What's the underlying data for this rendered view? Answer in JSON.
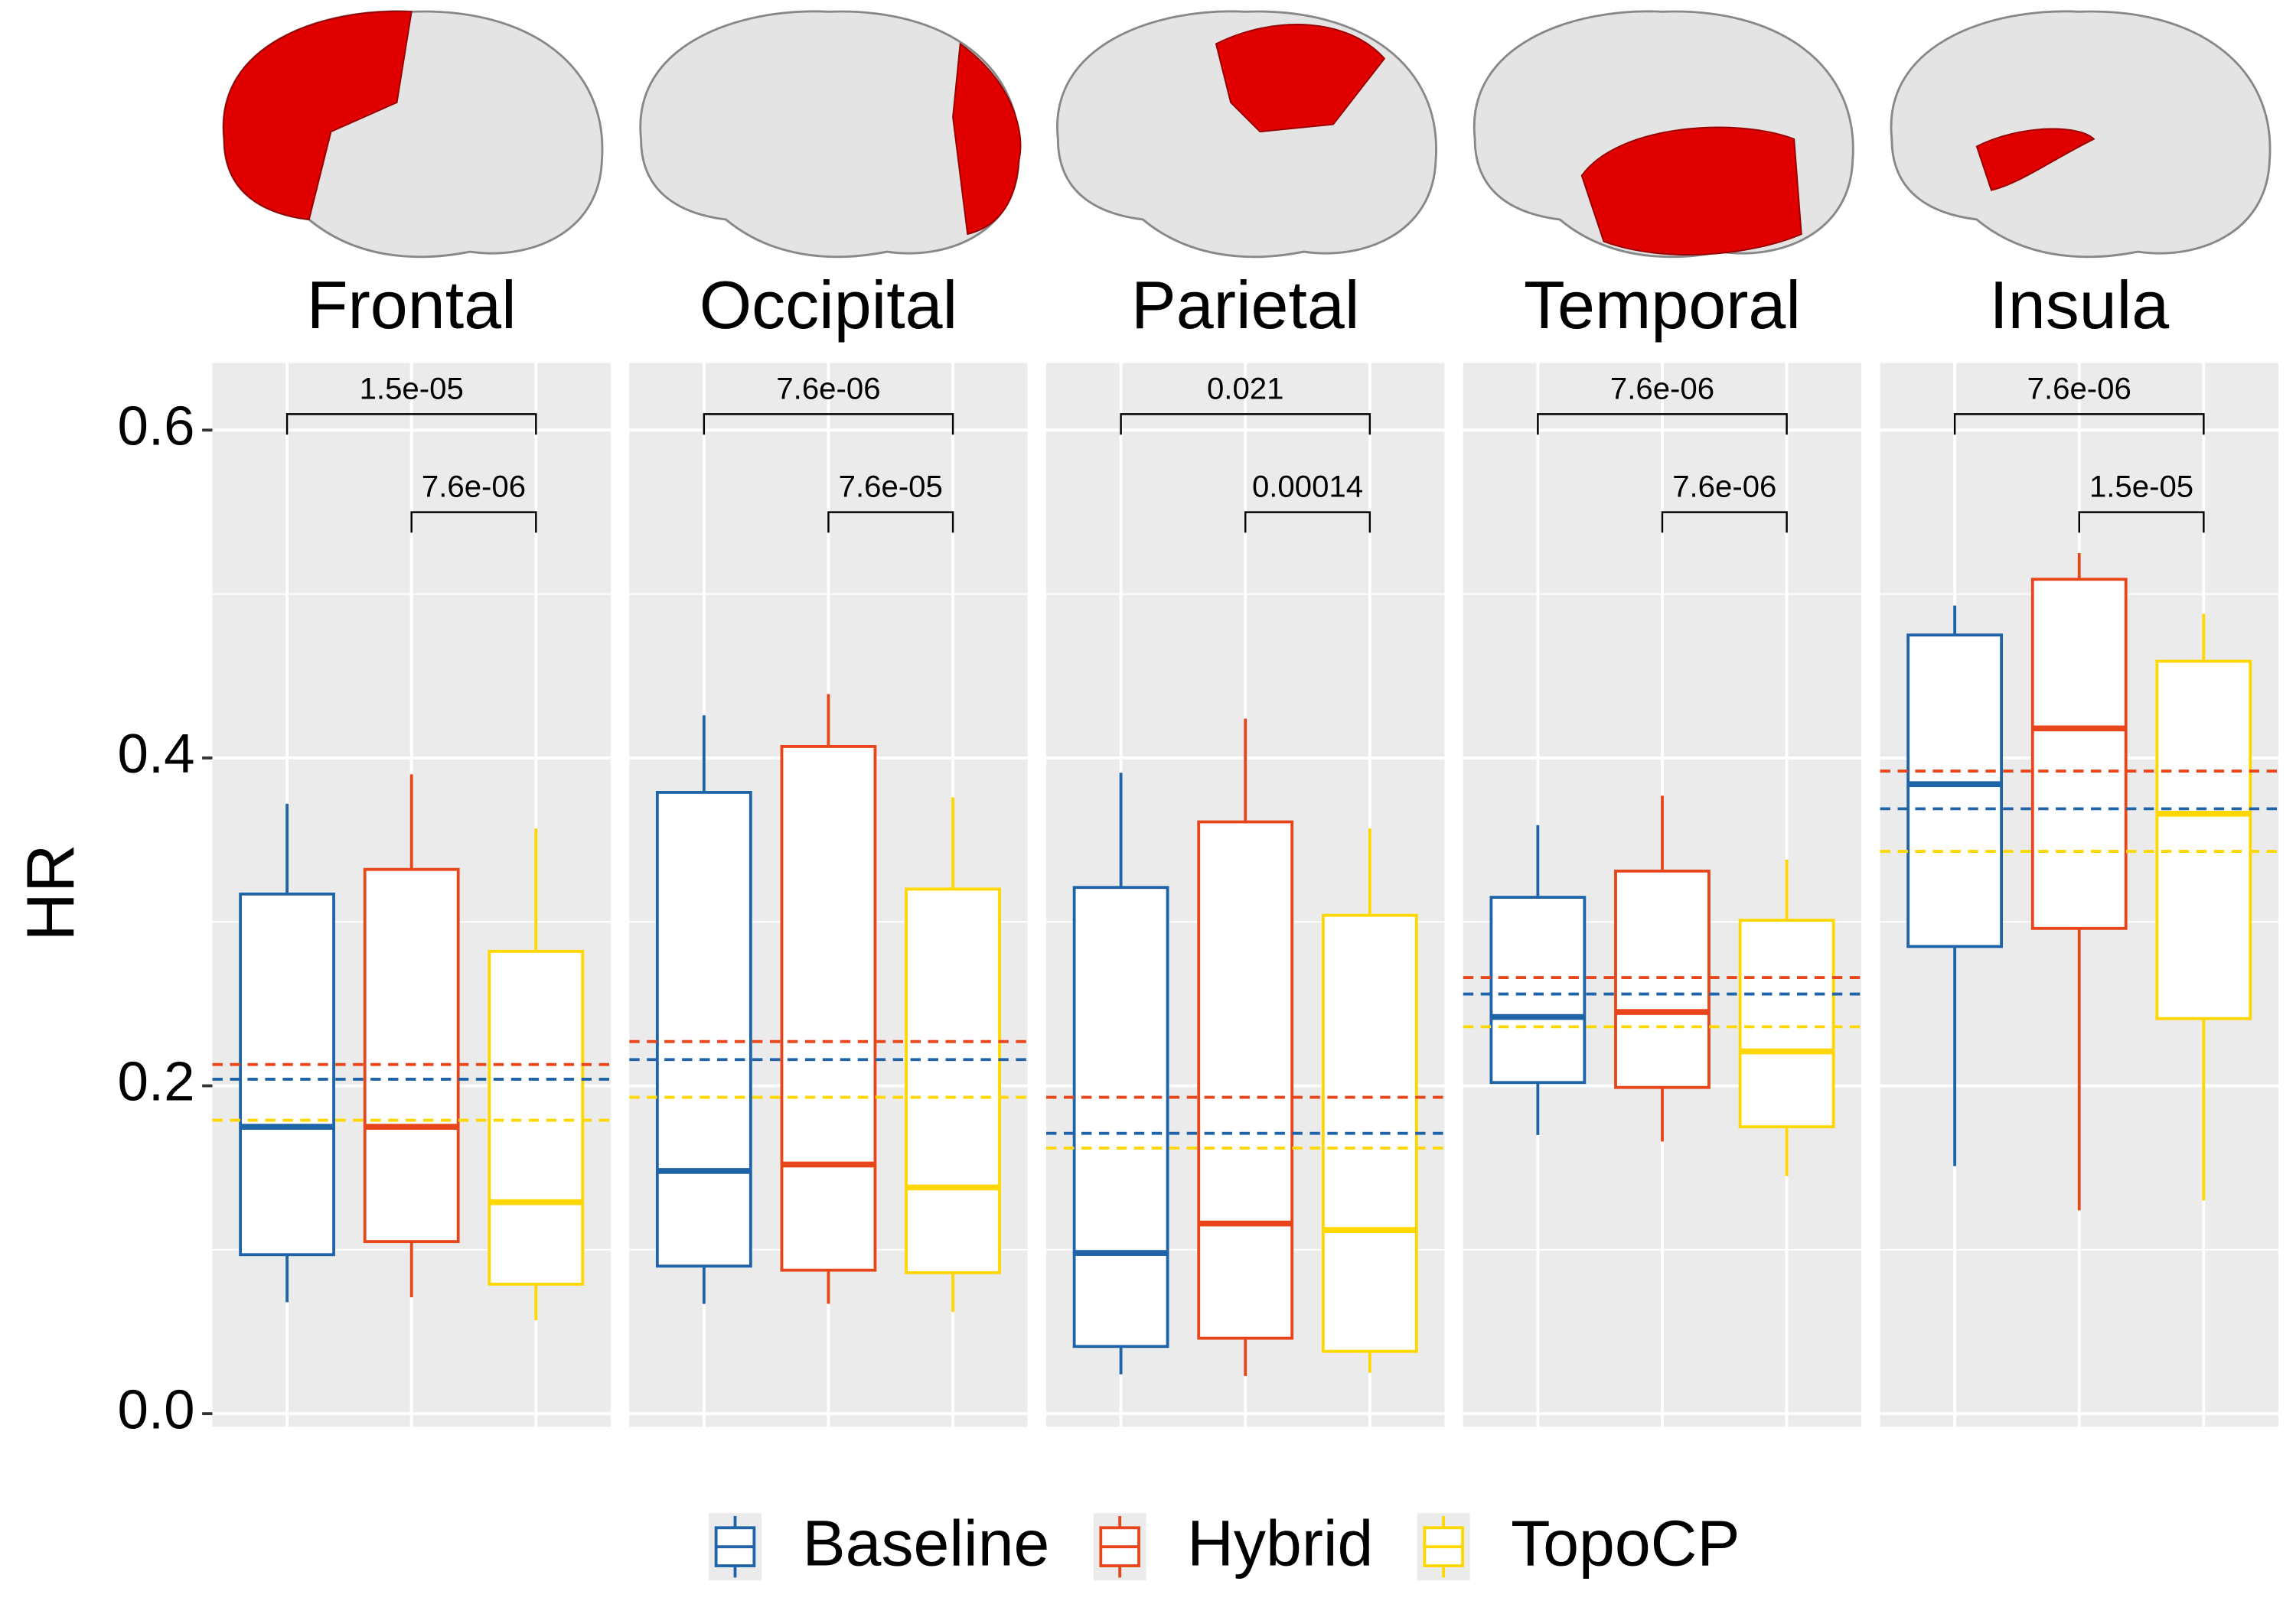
{
  "chart_data": {
    "type": "box",
    "y_label": "HR",
    "ylim": [
      -0.008,
      0.641
    ],
    "yticks": [
      {
        "value": 0,
        "label": "0.0"
      },
      0.2,
      0.4,
      0.6
    ],
    "yticks_minor": [
      0.1,
      0.3,
      0.5
    ],
    "grid": true,
    "legend": "bottom",
    "facets": [
      {
        "title": "Frontal",
        "annotations": [
          "1.5e-05",
          "7.6e-06"
        ]
      },
      {
        "title": "Occipital",
        "annotations": [
          "7.6e-06",
          "7.6e-05"
        ]
      },
      {
        "title": "Parietal",
        "annotations": [
          "0.021",
          "0.00014"
        ]
      },
      {
        "title": "Temporal",
        "annotations": [
          "7.6e-06",
          "7.6e-06"
        ]
      },
      {
        "title": "Insula",
        "annotations": [
          "7.6e-06",
          "1.5e-05"
        ]
      }
    ],
    "series": [
      {
        "name": "Baseline",
        "color": "#1f64a8",
        "whisker_high": [
          0.372,
          0.426,
          0.391,
          0.359,
          0.493
        ],
        "q3": [
          0.317,
          0.379,
          0.321,
          0.315,
          0.475
        ],
        "median": [
          0.175,
          0.148,
          0.098,
          0.242,
          0.384
        ],
        "q1": [
          0.097,
          0.09,
          0.041,
          0.202,
          0.285
        ],
        "whisker_low": [
          0.068,
          0.067,
          0.024,
          0.17,
          0.151
        ],
        "mean": [
          0.204,
          0.216,
          0.171,
          0.256,
          0.369
        ]
      },
      {
        "name": "Hybrid",
        "color": "#e8461a",
        "whisker_high": [
          0.39,
          0.439,
          0.424,
          0.377,
          0.525
        ],
        "q3": [
          0.332,
          0.407,
          0.361,
          0.331,
          0.509
        ],
        "median": [
          0.175,
          0.152,
          0.116,
          0.245,
          0.418
        ],
        "q1": [
          0.105,
          0.0875,
          0.046,
          0.199,
          0.296
        ],
        "whisker_low": [
          0.071,
          0.067,
          0.023,
          0.166,
          0.124
        ],
        "mean": [
          0.213,
          0.227,
          0.193,
          0.266,
          0.392
        ]
      },
      {
        "name": "TopoCP",
        "color": "#ffd700",
        "whisker_high": [
          0.357,
          0.376,
          0.357,
          0.338,
          0.488
        ],
        "q3": [
          0.282,
          0.32,
          0.304,
          0.301,
          0.459
        ],
        "median": [
          0.129,
          0.138,
          0.112,
          0.221,
          0.366
        ],
        "q1": [
          0.079,
          0.086,
          0.038,
          0.175,
          0.241
        ],
        "whisker_low": [
          0.057,
          0.062,
          0.025,
          0.145,
          0.13
        ],
        "mean": [
          0.179,
          0.193,
          0.162,
          0.236,
          0.343
        ]
      }
    ]
  }
}
